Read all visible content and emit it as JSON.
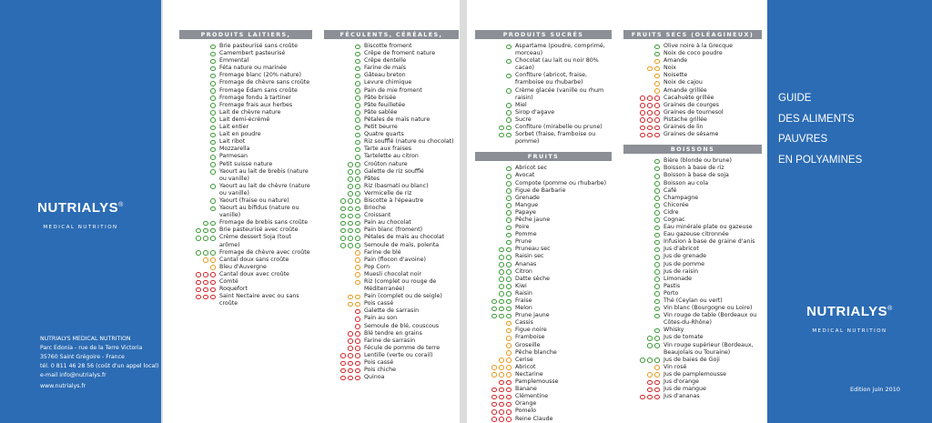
{
  "dot_colors": {
    "g": "#3f9b3a",
    "o": "#e79a1f",
    "r": "#d2262b"
  },
  "left": {
    "logo": "NUTRIALYS",
    "registered": "®",
    "logo_sub": "MEDICAL NUTRITION",
    "company": "NUTRIALYS MEDICAL NUTRITION",
    "address": [
      "Parc Edonia - rue de la Terre Victoria",
      "35760 Saint Grégoire - France",
      "tél. 0 811 46 28 56 (coût d'un appel local)",
      "e-mail info@nutrialys.fr"
    ],
    "web": "www.nutrialys.fr"
  },
  "right": {
    "title_lines": [
      "GUIDE",
      "DES ALIMENTS",
      "PAUVRES",
      "EN POLYAMINES"
    ],
    "logo": "NUTRIALYS",
    "registered": "®",
    "logo_sub": "MEDICAL NUTRITION",
    "edition": "Edition juin 2010"
  },
  "columns": [
    {
      "sections": [
        {
          "title": "PRODUITS LAITIERS, FROMAGES",
          "items": [
            {
              "label": "Brie pasteurisé sans croûte",
              "dots": "g"
            },
            {
              "label": "Camembert pasteurisé",
              "dots": "g"
            },
            {
              "label": "Emmental",
              "dots": "g"
            },
            {
              "label": "Féta nature ou marinée",
              "dots": "g"
            },
            {
              "label": "Fromage blanc (20% nature)",
              "dots": "g"
            },
            {
              "label": "Fromage de chèvre sans croûte",
              "dots": "g"
            },
            {
              "label": "Fromage Edam sans croûte",
              "dots": "g"
            },
            {
              "label": "Fromage fondu à tartiner",
              "dots": "g"
            },
            {
              "label": "Fromage frais aux herbes",
              "dots": "g"
            },
            {
              "label": "Lait de chèvre nature",
              "dots": "g"
            },
            {
              "label": "Lait demi-écrémé",
              "dots": "g"
            },
            {
              "label": "Lait entier",
              "dots": "g"
            },
            {
              "label": "Lait en poudre",
              "dots": "g"
            },
            {
              "label": "Lait ribot",
              "dots": "g"
            },
            {
              "label": "Mozzarella",
              "dots": "g"
            },
            {
              "label": "Parmesan",
              "dots": "g"
            },
            {
              "label": "Petit suisse nature",
              "dots": "g"
            },
            {
              "label": "Yaourt au lait de brebis (nature ou vanille)",
              "dots": "g"
            },
            {
              "label": "Yaourt au lait de chèvre (nature ou vanille)",
              "dots": "g"
            },
            {
              "label": "Yaourt (fraise ou nature)",
              "dots": "g"
            },
            {
              "label": "Yaourt au bifidus (nature ou vanille)",
              "dots": "g"
            },
            {
              "label": "Fromage de brebis sans croûte",
              "dots": "gg"
            },
            {
              "label": "Brie pasteurisé avec croûte",
              "dots": "ggg"
            },
            {
              "label": "Crème dessert Soja (tout arôme)",
              "dots": "ggg"
            },
            {
              "label": "Fromage de chèvre avec croûte",
              "dots": "ggg"
            },
            {
              "label": "Cantal doux sans croûte",
              "dots": "oo"
            },
            {
              "label": "Bleu d'Auvergne",
              "dots": "o"
            },
            {
              "label": "Cantal doux avec croûte",
              "dots": "rrr"
            },
            {
              "label": "Comté",
              "dots": "rrr"
            },
            {
              "label": "Roquefort",
              "dots": "rrr"
            },
            {
              "label": "Saint Nectaire avec ou sans croûte",
              "dots": "rrr"
            }
          ]
        }
      ]
    },
    {
      "sections": [
        {
          "title": "FÉCULENTS, CÉRÉALES, BOULANGERIE",
          "items": [
            {
              "label": "Biscotte froment",
              "dots": "g"
            },
            {
              "label": "Crêpe de froment nature",
              "dots": "g"
            },
            {
              "label": "Crêpe dentelle",
              "dots": "g"
            },
            {
              "label": "Farine de maïs",
              "dots": "g"
            },
            {
              "label": "Gâteau breton",
              "dots": "g"
            },
            {
              "label": "Levure chimique",
              "dots": "g"
            },
            {
              "label": "Pain de mie froment",
              "dots": "g"
            },
            {
              "label": "Pâte brisée",
              "dots": "g"
            },
            {
              "label": "Pâte feuilletée",
              "dots": "g"
            },
            {
              "label": "Pâte sablée",
              "dots": "g"
            },
            {
              "label": "Pétales de maïs nature",
              "dots": "g"
            },
            {
              "label": "Petit beurre",
              "dots": "g"
            },
            {
              "label": "Quatre quarts",
              "dots": "g"
            },
            {
              "label": "Riz soufflé (nature ou chocolat)",
              "dots": "g"
            },
            {
              "label": "Tarte aux fraises",
              "dots": "g"
            },
            {
              "label": "Tartelette au citron",
              "dots": "g"
            },
            {
              "label": "Croûton nature",
              "dots": "gg"
            },
            {
              "label": "Galette de riz soufflé",
              "dots": "gg"
            },
            {
              "label": "Pâtes",
              "dots": "gg"
            },
            {
              "label": "Riz (basmati ou blanc)",
              "dots": "gg"
            },
            {
              "label": "Vermicelle de riz",
              "dots": "gg"
            },
            {
              "label": "Biscotte à l'épeautre",
              "dots": "ggg"
            },
            {
              "label": "Brioche",
              "dots": "ggg"
            },
            {
              "label": "Croissant",
              "dots": "ggg"
            },
            {
              "label": "Pain au chocolat",
              "dots": "ggg"
            },
            {
              "label": "Pain blanc (froment)",
              "dots": "ggg"
            },
            {
              "label": "Pétales de maïs au chocolat",
              "dots": "ggg"
            },
            {
              "label": "Semoule de maïs, polenta",
              "dots": "ggg"
            },
            {
              "label": "Farine de blé",
              "dots": "o"
            },
            {
              "label": "Pain (flocon d'avoine)",
              "dots": "o"
            },
            {
              "label": "Pop Corn",
              "dots": "o"
            },
            {
              "label": "Muesli chocolat noir",
              "dots": "o"
            },
            {
              "label": "Riz (complet ou rouge de Méditerranée)",
              "dots": "o"
            },
            {
              "label": "Pain (complet ou de seigle)",
              "dots": "oo"
            },
            {
              "label": "Pois cassé",
              "dots": "oo"
            },
            {
              "label": "Galette de sarrasin",
              "dots": "r"
            },
            {
              "label": "Pain au son",
              "dots": "r"
            },
            {
              "label": "Semoule de blé, couscous",
              "dots": "r"
            },
            {
              "label": "Blé tendre en grains",
              "dots": "rr"
            },
            {
              "label": "Farine de sarrasin",
              "dots": "rr"
            },
            {
              "label": "Fécule de pomme de terre",
              "dots": "rr"
            },
            {
              "label": "Lentille (verte ou corail)",
              "dots": "rrr"
            },
            {
              "label": "Pois cassé",
              "dots": "rrr"
            },
            {
              "label": "Pois chiche",
              "dots": "rrr"
            },
            {
              "label": "Quinoa",
              "dots": "rrr"
            }
          ]
        }
      ]
    },
    {
      "sections": [
        {
          "title": "PRODUITS SUCRÉS",
          "items": [
            {
              "label": "Aspartame (poudre, comprimé, morceau)",
              "dots": "g"
            },
            {
              "label": "Chocolat (au lait ou noir 80% cacao)",
              "dots": "g"
            },
            {
              "label": "Confiture (abricot, fraise, framboise ou rhubarbe)",
              "dots": "g"
            },
            {
              "label": "Crème glacée (vanille ou rhum raisin)",
              "dots": "g"
            },
            {
              "label": "Miel",
              "dots": "g"
            },
            {
              "label": "Sirop d'agave",
              "dots": "g"
            },
            {
              "label": "Sucre",
              "dots": "g"
            },
            {
              "label": "Confiture (mirabelle ou prune)",
              "dots": "gg"
            },
            {
              "label": "Sorbet (fraise, framboise ou pomme)",
              "dots": "gg"
            }
          ]
        },
        {
          "title": "FRUITS",
          "items": [
            {
              "label": "Abricot sec",
              "dots": "g"
            },
            {
              "label": "Avocat",
              "dots": "g"
            },
            {
              "label": "Compote (pomme ou rhubarbe)",
              "dots": "g"
            },
            {
              "label": "Figue de Barbarie",
              "dots": "g"
            },
            {
              "label": "Grenade",
              "dots": "g"
            },
            {
              "label": "Mangue",
              "dots": "g"
            },
            {
              "label": "Papaye",
              "dots": "g"
            },
            {
              "label": "Pêche jaune",
              "dots": "g"
            },
            {
              "label": "Poire",
              "dots": "g"
            },
            {
              "label": "Pomme",
              "dots": "g"
            },
            {
              "label": "Prune",
              "dots": "g"
            },
            {
              "label": "Pruneau sec",
              "dots": "gg"
            },
            {
              "label": "Raisin sec",
              "dots": "gg"
            },
            {
              "label": "Ananas",
              "dots": "gg"
            },
            {
              "label": "Citron",
              "dots": "gg"
            },
            {
              "label": "Datte sèche",
              "dots": "gg"
            },
            {
              "label": "Kiwi",
              "dots": "gg"
            },
            {
              "label": "Raisin",
              "dots": "gg"
            },
            {
              "label": "Fraise",
              "dots": "ggg"
            },
            {
              "label": "Melon",
              "dots": "ggg"
            },
            {
              "label": "Prune jaune",
              "dots": "ggg"
            },
            {
              "label": "Cassis",
              "dots": "o"
            },
            {
              "label": "Figue noire",
              "dots": "o"
            },
            {
              "label": "Framboise",
              "dots": "o"
            },
            {
              "label": "Groseille",
              "dots": "o"
            },
            {
              "label": "Pêche blanche",
              "dots": "o"
            },
            {
              "label": "Cerise",
              "dots": "oo"
            },
            {
              "label": "Abricot",
              "dots": "ooo"
            },
            {
              "label": "Nectarine",
              "dots": "ooo"
            },
            {
              "label": "Pamplemousse",
              "dots": "rr"
            },
            {
              "label": "Banane",
              "dots": "rrr"
            },
            {
              "label": "Clémentine",
              "dots": "rrr"
            },
            {
              "label": "Orange",
              "dots": "rrr"
            },
            {
              "label": "Pomelo",
              "dots": "rrr"
            },
            {
              "label": "Reine Claude",
              "dots": "rrr"
            }
          ]
        }
      ]
    },
    {
      "sections": [
        {
          "title": "FRUITS SECS (OLÉAGINEUX)",
          "items": [
            {
              "label": "Olive noire à la Grecque",
              "dots": "g"
            },
            {
              "label": "Noix de coco poudre",
              "dots": "g"
            },
            {
              "label": "Amande",
              "dots": "o"
            },
            {
              "label": "Noix",
              "dots": "oo"
            },
            {
              "label": "Noisette",
              "dots": "o"
            },
            {
              "label": "Noix de cajou",
              "dots": "o"
            },
            {
              "label": "Amande grillée",
              "dots": "o"
            },
            {
              "label": "Cacahuète grillée",
              "dots": "rrr"
            },
            {
              "label": "Graines de courges",
              "dots": "rrr"
            },
            {
              "label": "Graines de tournesol",
              "dots": "rrr"
            },
            {
              "label": "Pistache grillée",
              "dots": "rrr"
            },
            {
              "label": "Graines de lin",
              "dots": "rrr"
            },
            {
              "label": "Graines de sésame",
              "dots": "rrr"
            }
          ]
        },
        {
          "title": "BOISSONS",
          "items": [
            {
              "label": "Bière (blonde ou brune)",
              "dots": "g"
            },
            {
              "label": "Boisson à base de riz",
              "dots": "g"
            },
            {
              "label": "Boisson à base de soja",
              "dots": "g"
            },
            {
              "label": "Boisson au cola",
              "dots": "g"
            },
            {
              "label": "Café",
              "dots": "g"
            },
            {
              "label": "Champagne",
              "dots": "g"
            },
            {
              "label": "Chicorée",
              "dots": "g"
            },
            {
              "label": "Cidre",
              "dots": "g"
            },
            {
              "label": "Cognac",
              "dots": "g"
            },
            {
              "label": "Eau minérale plate ou gazeuse",
              "dots": "g"
            },
            {
              "label": "Eau gazeuse citronnée",
              "dots": "g"
            },
            {
              "label": "Infusion à base de graine d'anis",
              "dots": "g"
            },
            {
              "label": "Jus d'abricot",
              "dots": "g"
            },
            {
              "label": "Jus de grenade",
              "dots": "g"
            },
            {
              "label": "Jus de pomme",
              "dots": "g"
            },
            {
              "label": "Jus de raisin",
              "dots": "g"
            },
            {
              "label": "Limonade",
              "dots": "g"
            },
            {
              "label": "Pastis",
              "dots": "g"
            },
            {
              "label": "Porto",
              "dots": "g"
            },
            {
              "label": "Thé (Ceylan ou vert)",
              "dots": "g"
            },
            {
              "label": "Vin blanc (Bourgogne ou Loire)",
              "dots": "g"
            },
            {
              "label": "Vin rouge de table (Bordeaux ou Côtes-du-Rhône)",
              "dots": "g"
            },
            {
              "label": "Whisky",
              "dots": "g"
            },
            {
              "label": "Jus de tomate",
              "dots": "gg"
            },
            {
              "label": "Vin rouge supérieur (Bordeaux, Beaujolais ou Touraine)",
              "dots": "gg"
            },
            {
              "label": "Jus de baies de Goji",
              "dots": "ggg"
            },
            {
              "label": "Vin rosé",
              "dots": "o"
            },
            {
              "label": "Jus de pamplemousse",
              "dots": "oo"
            },
            {
              "label": "Jus d'orange",
              "dots": "rr"
            },
            {
              "label": "Jus de mangue",
              "dots": "rr"
            },
            {
              "label": "Jus d'ananas",
              "dots": "rrr"
            }
          ]
        }
      ]
    }
  ]
}
